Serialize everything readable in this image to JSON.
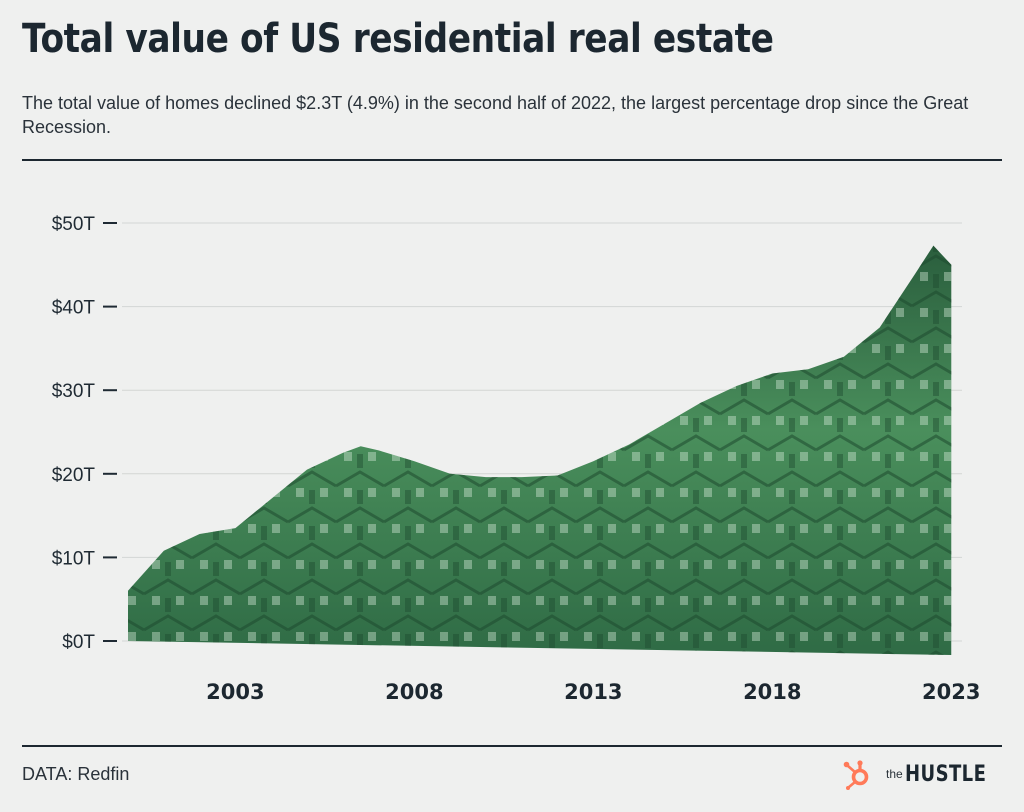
{
  "header": {
    "title": "Total value of US residential real estate",
    "subtitle": "The total value of homes declined $2.3T (4.9%) in the second half of 2022, the largest percentage drop since the Great Recession."
  },
  "footer": {
    "source": "DATA: Redfin",
    "logo_small": "the",
    "logo_word": "HUSTLE",
    "logo_icon": "hubspot-sprocket-icon"
  },
  "colors": {
    "accent": "#ff7a59",
    "fill_dark": "#2f6b45",
    "fill_mid": "#4f9a63",
    "fill_light": "#a9d3b1",
    "text": "#1c2730"
  },
  "chart_data": {
    "type": "area",
    "title": "Total value of US residential real estate",
    "xlabel": "",
    "ylabel": "",
    "ylim": [
      0,
      50
    ],
    "yticks": [
      0,
      10,
      20,
      30,
      40,
      50
    ],
    "ytick_labels": [
      "$0T",
      "$10T",
      "$20T",
      "$30T",
      "$40T",
      "$50T"
    ],
    "xlim": [
      2000,
      2023.3
    ],
    "xticks": [
      2003,
      2008,
      2013,
      2018,
      2023
    ],
    "xtick_labels": [
      "2003",
      "2008",
      "2013",
      "2018",
      "2023"
    ],
    "grid": true,
    "fill_style": "photo collage of green-tinted houses",
    "series": [
      {
        "x": [
          2000.0,
          2001.0,
          2002.0,
          2003.0,
          2004.0,
          2005.0,
          2006.0,
          2006.5,
          2007.0,
          2008.0,
          2009.0,
          2010.0,
          2011.0,
          2012.0,
          2013.0,
          2014.0,
          2015.0,
          2016.0,
          2017.0,
          2018.0,
          2019.0,
          2020.0,
          2021.0,
          2022.0,
          2022.5,
          2023.0
        ],
        "values": [
          6.0,
          10.8,
          12.8,
          13.5,
          17.0,
          20.5,
          22.5,
          23.3,
          22.8,
          21.5,
          20.0,
          19.6,
          19.6,
          19.8,
          21.5,
          23.5,
          26.0,
          28.5,
          30.5,
          32.0,
          32.5,
          34.0,
          37.5,
          44.0,
          47.3,
          45.0
        ]
      }
    ]
  }
}
